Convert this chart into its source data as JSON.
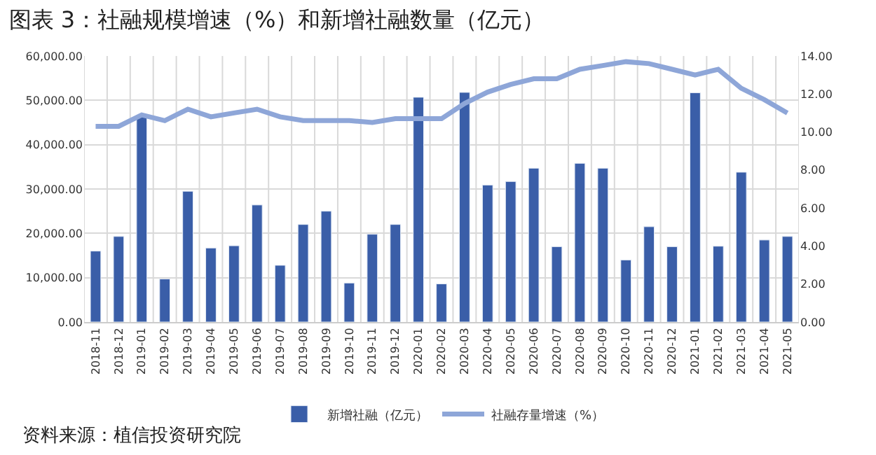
{
  "chart_data": {
    "type": "bar",
    "title": "图表 3：社融规模增速（%）和新增社融数量（亿元）",
    "categories": [
      "2018-11",
      "2018-12",
      "2019-01",
      "2019-02",
      "2019-03",
      "2019-04",
      "2019-05",
      "2019-06",
      "2019-07",
      "2019-08",
      "2019-09",
      "2019-10",
      "2019-11",
      "2019-12",
      "2020-01",
      "2020-02",
      "2020-03",
      "2020-04",
      "2020-05",
      "2020-06",
      "2020-07",
      "2020-08",
      "2020-09",
      "2020-10",
      "2020-11",
      "2020-12",
      "2021-01",
      "2021-02",
      "2021-03",
      "2021-04",
      "2021-05"
    ],
    "series": [
      {
        "name": "新增社融（亿元）",
        "color": "#3a5ea8",
        "values": [
          16000,
          19300,
          46400,
          9700,
          29500,
          16700,
          17200,
          26400,
          12800,
          22000,
          25000,
          8800,
          19800,
          22000,
          50700,
          8600,
          51800,
          30900,
          31700,
          34700,
          17000,
          35800,
          34700,
          14000,
          21500,
          17000,
          51700,
          17100,
          33800,
          18500,
          19300
        ]
      },
      {
        "name": "社融存量增速（%）",
        "type": "line",
        "axis": "y2",
        "color": "#8ea6d8",
        "line_style": "solid",
        "marker": "none",
        "values": [
          10.3,
          10.3,
          10.9,
          10.6,
          11.2,
          10.8,
          11.0,
          11.2,
          10.8,
          10.6,
          10.6,
          10.6,
          10.5,
          10.7,
          10.7,
          10.7,
          11.5,
          12.1,
          12.5,
          12.8,
          12.8,
          13.3,
          13.5,
          13.7,
          13.6,
          13.3,
          13.0,
          13.3,
          12.3,
          11.7,
          11.0
        ]
      }
    ],
    "ylim": [
      0,
      60000
    ],
    "yticks": [
      {
        "value": 0,
        "label": "0.00"
      },
      {
        "value": 10000,
        "label": "10,000.00"
      },
      {
        "value": 20000,
        "label": "20,000.00"
      },
      {
        "value": 30000,
        "label": "30,000.00"
      },
      {
        "value": 40000,
        "label": "40,000.00"
      },
      {
        "value": 50000,
        "label": "50,000.00"
      },
      {
        "value": 60000,
        "label": "60,000.00"
      }
    ],
    "y2lim": [
      0,
      14
    ],
    "y2ticks": [
      {
        "value": 0,
        "label": "0.00"
      },
      {
        "value": 2,
        "label": "2.00"
      },
      {
        "value": 4,
        "label": "4.00"
      },
      {
        "value": 6,
        "label": "6.00"
      },
      {
        "value": 8,
        "label": "8.00"
      },
      {
        "value": 10,
        "label": "10.00"
      },
      {
        "value": 12,
        "label": "12.00"
      },
      {
        "value": 14,
        "label": "14.00"
      }
    ],
    "grid": true,
    "legend": "bottom",
    "annotations": [
      "资料来源：植信投资研究院"
    ]
  }
}
